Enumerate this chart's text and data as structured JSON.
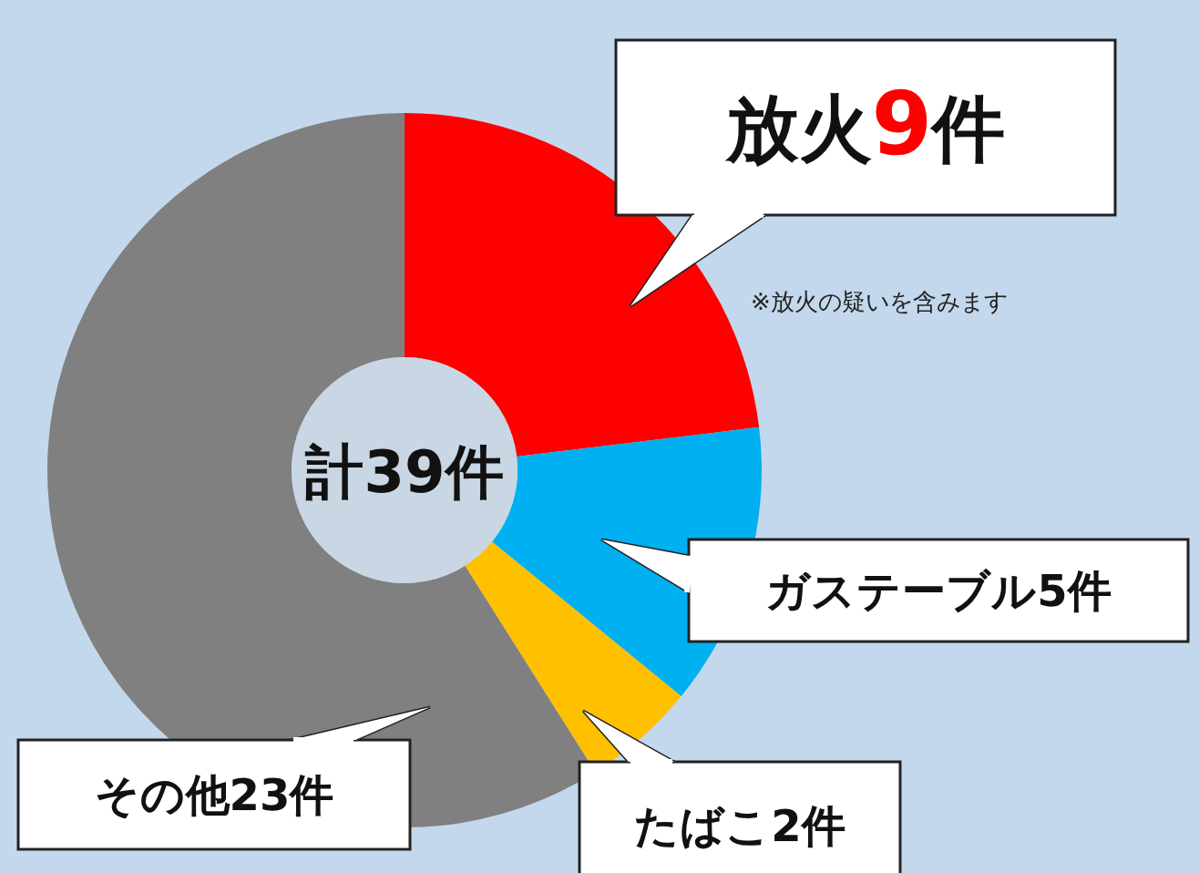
{
  "chart_data": {
    "type": "donut",
    "title": "計39件",
    "categories": [
      "放火",
      "ガステーブル",
      "たばこ",
      "その他"
    ],
    "values": [
      9,
      5,
      2,
      23
    ],
    "value_labels": [
      "9件",
      "5件",
      "2件",
      "23件"
    ],
    "colors": [
      "#ff0000",
      "#00b0f0",
      "#ffc000",
      "#808080"
    ],
    "annotations": [
      "※放火の疑いを含みます"
    ]
  }
}
